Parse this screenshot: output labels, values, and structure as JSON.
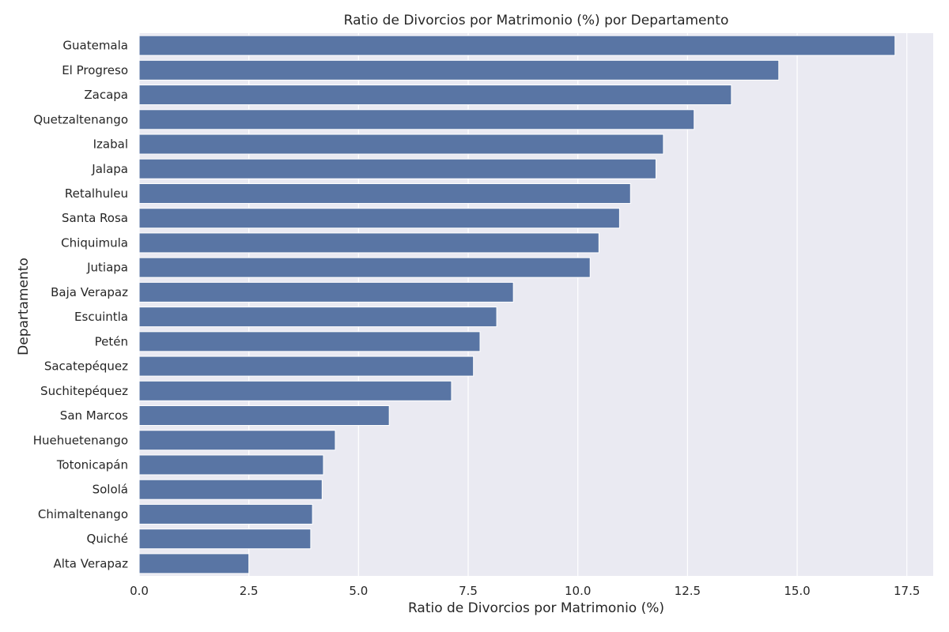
{
  "chart_data": {
    "type": "bar",
    "orientation": "horizontal",
    "title": "Ratio de Divorcios por Matrimonio (%) por Departamento",
    "xlabel": "Ratio de Divorcios por Matrimonio (%)",
    "ylabel": "Departamento",
    "xlim": [
      0,
      18.1
    ],
    "xticks": [
      0.0,
      2.5,
      5.0,
      7.5,
      10.0,
      12.5,
      15.0,
      17.5
    ],
    "xtick_labels": [
      "0.0",
      "2.5",
      "5.0",
      "7.5",
      "10.0",
      "12.5",
      "15.0",
      "17.5"
    ],
    "grid": true,
    "bar_color": "#5975a4",
    "background_color": "#eaeaf2",
    "categories": [
      "Guatemala",
      "El Progreso",
      "Zacapa",
      "Quetzaltenango",
      "Izabal",
      "Jalapa",
      "Retalhuleu",
      "Santa Rosa",
      "Chiquimula",
      "Jutiapa",
      "Baja Verapaz",
      "Escuintla",
      "Petén",
      "Sacatepéquez",
      "Suchitepéquez",
      "San Marcos",
      "Huehuetenango",
      "Totonicapán",
      "Sololá",
      "Chimaltenango",
      "Quiché",
      "Alta Verapaz"
    ],
    "values": [
      17.23,
      14.58,
      13.5,
      12.65,
      11.95,
      11.78,
      11.2,
      10.95,
      10.48,
      10.28,
      8.53,
      8.15,
      7.77,
      7.62,
      7.12,
      5.7,
      4.47,
      4.2,
      4.17,
      3.95,
      3.91,
      2.5
    ]
  }
}
